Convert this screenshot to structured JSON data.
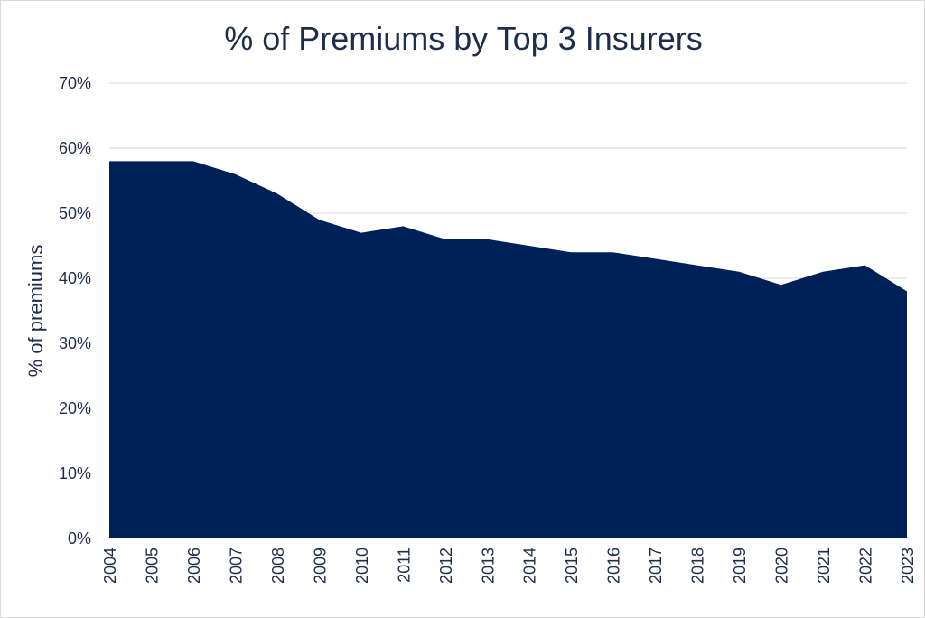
{
  "chart_data": {
    "type": "area",
    "title": "% of Premiums by Top 3 Insurers",
    "xlabel": "",
    "ylabel": "% of premiums",
    "x": [
      "2004",
      "2005",
      "2006",
      "2007",
      "2008",
      "2009",
      "2010",
      "2011",
      "2012",
      "2013",
      "2014",
      "2015",
      "2016",
      "2017",
      "2018",
      "2019",
      "2020",
      "2021",
      "2022",
      "2023"
    ],
    "series": [
      {
        "name": "",
        "values": [
          58,
          58,
          58,
          56,
          53,
          49,
          47,
          48,
          46,
          46,
          45,
          44,
          44,
          43,
          42,
          41,
          39,
          41,
          42,
          38
        ]
      }
    ],
    "ylim": [
      0,
      70
    ],
    "yticks": [
      "0%",
      "10%",
      "20%",
      "30%",
      "40%",
      "50%",
      "60%",
      "70%"
    ],
    "grid": true,
    "legend": "none",
    "colors": {
      "area": "#002157",
      "grid": "#d9d9d9",
      "text": "#1f2d4d"
    }
  }
}
